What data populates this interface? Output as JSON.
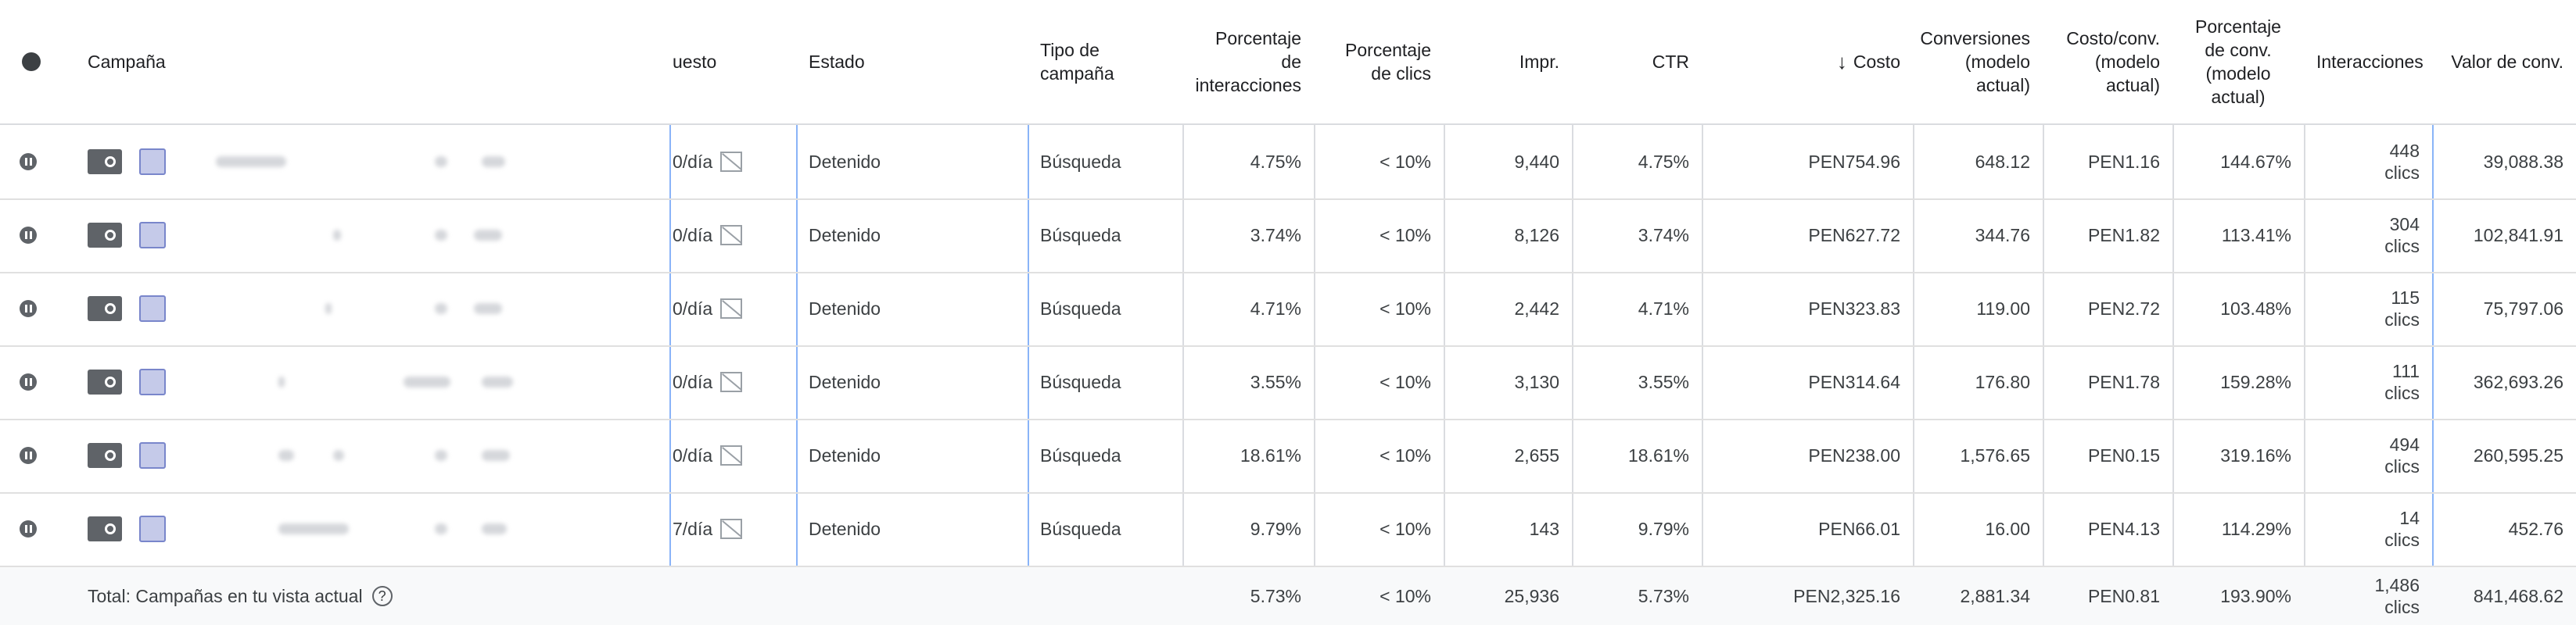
{
  "headers": {
    "campaign": "Campaña",
    "budget": "uesto",
    "status": "Estado",
    "type": "Tipo de campaña",
    "interaction_rate": "Porcentaje de interacciones",
    "click_rate": "Porcentaje de clics",
    "impressions": "Impr.",
    "ctr": "CTR",
    "cost": "Costo",
    "conversions": "Conversiones (modelo actual)",
    "cost_conv": "Costo/conv. (modelo actual)",
    "conv_rate": "Porcentaje de conv. (modelo actual)",
    "interactions": "Interacciones",
    "conv_value": "Valor de conv."
  },
  "rows": [
    {
      "budget": "0/día",
      "status": "Detenido",
      "type": "Búsqueda",
      "interaction_rate": "4.75%",
      "click_rate": "< 10%",
      "impressions": "9,440",
      "ctr": "4.75%",
      "cost": "PEN754.96",
      "conversions": "648.12",
      "cost_conv": "PEN1.16",
      "conv_rate": "144.67%",
      "interactions": "448",
      "interactions_unit": "clics",
      "conv_value": "39,088.38"
    },
    {
      "budget": "0/día",
      "status": "Detenido",
      "type": "Búsqueda",
      "interaction_rate": "3.74%",
      "click_rate": "< 10%",
      "impressions": "8,126",
      "ctr": "3.74%",
      "cost": "PEN627.72",
      "conversions": "344.76",
      "cost_conv": "PEN1.82",
      "conv_rate": "113.41%",
      "interactions": "304",
      "interactions_unit": "clics",
      "conv_value": "102,841.91"
    },
    {
      "budget": "0/día",
      "status": "Detenido",
      "type": "Búsqueda",
      "interaction_rate": "4.71%",
      "click_rate": "< 10%",
      "impressions": "2,442",
      "ctr": "4.71%",
      "cost": "PEN323.83",
      "conversions": "119.00",
      "cost_conv": "PEN2.72",
      "conv_rate": "103.48%",
      "interactions": "115",
      "interactions_unit": "clics",
      "conv_value": "75,797.06"
    },
    {
      "budget": "0/día",
      "status": "Detenido",
      "type": "Búsqueda",
      "interaction_rate": "3.55%",
      "click_rate": "< 10%",
      "impressions": "3,130",
      "ctr": "3.55%",
      "cost": "PEN314.64",
      "conversions": "176.80",
      "cost_conv": "PEN1.78",
      "conv_rate": "159.28%",
      "interactions": "111",
      "interactions_unit": "clics",
      "conv_value": "362,693.26"
    },
    {
      "budget": "0/día",
      "status": "Detenido",
      "type": "Búsqueda",
      "interaction_rate": "18.61%",
      "click_rate": "< 10%",
      "impressions": "2,655",
      "ctr": "18.61%",
      "cost": "PEN238.00",
      "conversions": "1,576.65",
      "cost_conv": "PEN0.15",
      "conv_rate": "319.16%",
      "interactions": "494",
      "interactions_unit": "clics",
      "conv_value": "260,595.25"
    },
    {
      "budget": "7/día",
      "status": "Detenido",
      "type": "Búsqueda",
      "interaction_rate": "9.79%",
      "click_rate": "< 10%",
      "impressions": "143",
      "ctr": "9.79%",
      "cost": "PEN66.01",
      "conversions": "16.00",
      "cost_conv": "PEN4.13",
      "conv_rate": "114.29%",
      "interactions": "14",
      "interactions_unit": "clics",
      "conv_value": "452.76"
    }
  ],
  "total": {
    "label": "Total: Campañas en tu vista actual",
    "interaction_rate": "5.73%",
    "click_rate": "< 10%",
    "impressions": "25,936",
    "ctr": "5.73%",
    "cost": "PEN2,325.16",
    "conversions": "2,881.34",
    "cost_conv": "PEN0.81",
    "conv_rate": "193.90%",
    "interactions": "1,486",
    "interactions_unit": "clics",
    "conv_value": "841,468.62"
  },
  "icons": {
    "sort": "arrow-down-icon",
    "paused": "pause-icon",
    "type": "search-campaign-icon",
    "no_image": "no-image-icon",
    "help": "help-icon"
  }
}
